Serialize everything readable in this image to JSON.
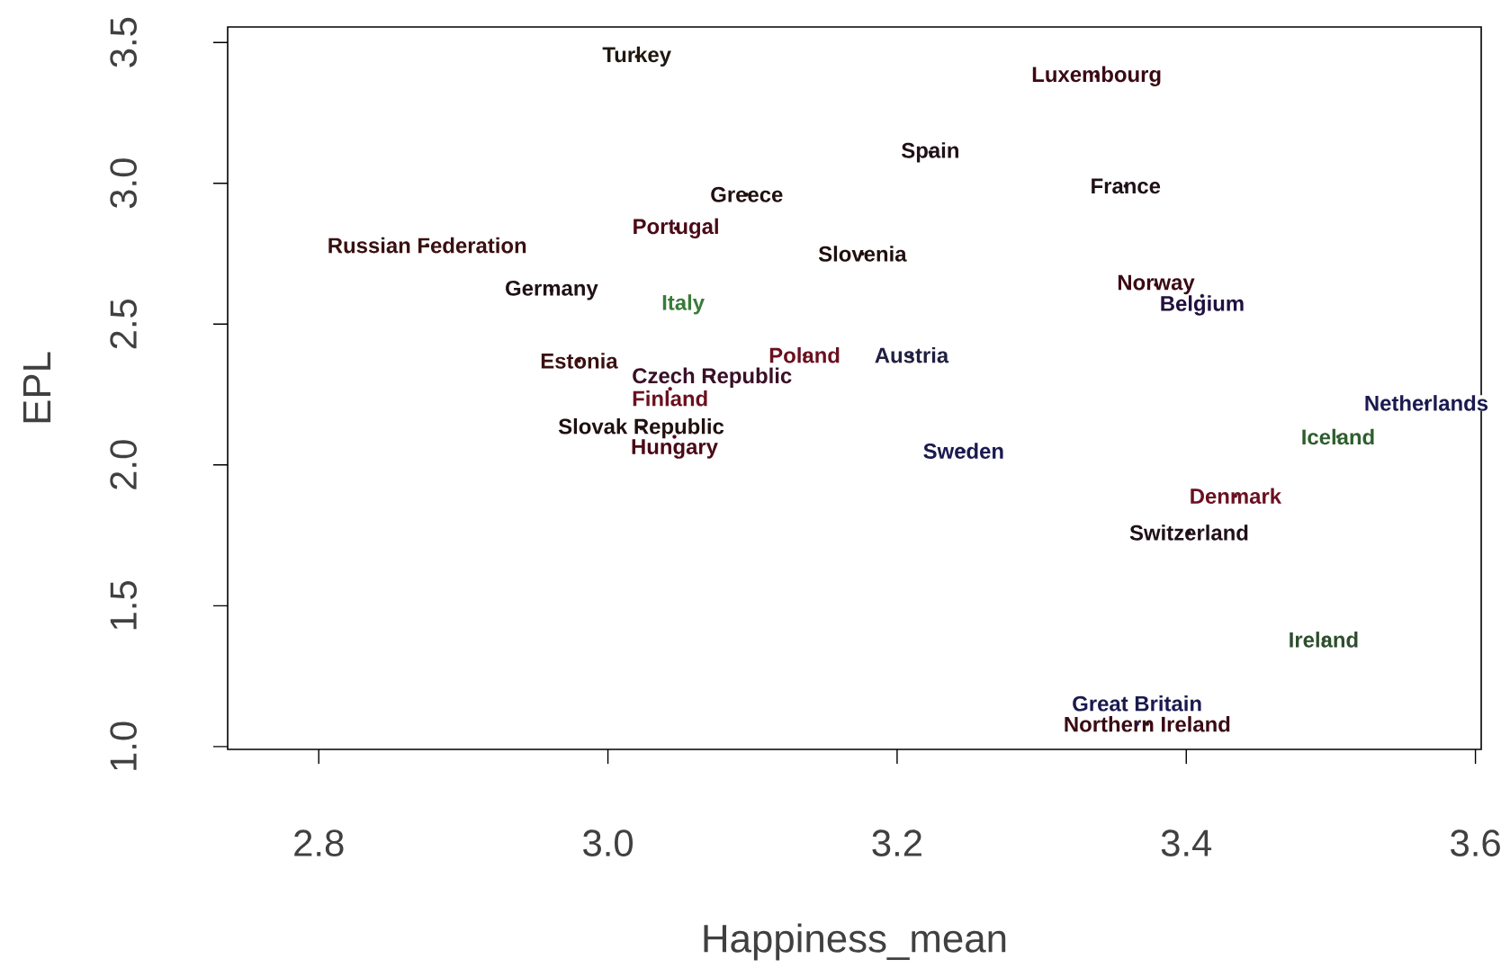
{
  "chart_data": {
    "type": "scatter",
    "xlabel": "Happiness_mean",
    "ylabel": "EPL",
    "x": [
      3.02,
      3.338,
      3.223,
      3.358,
      3.096,
      3.047,
      2.875,
      3.176,
      2.961,
      3.379,
      3.411,
      3.052,
      3.136,
      3.21,
      2.98,
      3.072,
      3.043,
      3.566,
      3.505,
      3.023,
      3.046,
      3.246,
      3.434,
      3.402,
      3.495,
      3.373,
      3.366
    ],
    "values": [
      3.45,
      3.38,
      3.11,
      2.99,
      2.96,
      2.84,
      2.78,
      2.75,
      2.62,
      2.64,
      2.6,
      2.57,
      2.39,
      2.39,
      2.37,
      2.31,
      2.27,
      2.22,
      2.1,
      2.13,
      2.1,
      2.05,
      1.89,
      1.76,
      1.38,
      1.08,
      1.08
    ],
    "value_labels": [
      "Turkey",
      "Luxembourg",
      "Spain",
      "France",
      "Greece",
      "Portugal",
      "Russian Federation",
      "Slovenia",
      "Germany",
      "Norway",
      "Belgium",
      "Italy",
      "Poland",
      "Austria",
      "Estonia",
      "Czech Republic",
      "Finland",
      "Netherlands",
      "Iceland",
      "Slovak Republic",
      "Hungary",
      "Sweden",
      "Denmark",
      "Switzerland",
      "Ireland",
      "Northern Ireland",
      "Great Britain"
    ],
    "colors": [
      "#201810",
      "#3a0a14",
      "#201018",
      "#201018",
      "#201010",
      "#4a0a18",
      "#3a1010",
      "#201010",
      "#201018",
      "#3a0a14",
      "#201040",
      "#3a7a3a",
      "#6a1020",
      "#202040",
      "#3a1010",
      "#3a1028",
      "#6a1020",
      "#1a1a50",
      "#2e5e2e",
      "#201010",
      "#4a0a18",
      "#1a1a50",
      "#6a1020",
      "#201018",
      "#2e4e2e",
      "#3a0a14",
      "#1a1a50"
    ],
    "marker": "none",
    "xlim": [
      2.737,
      3.604
    ],
    "ylim": [
      0.99,
      3.555
    ],
    "xticks": [
      2.8,
      {
        "value": 3.0,
        "label": "3.0"
      },
      3.2,
      3.4,
      3.6
    ],
    "yticks": [
      {
        "value": 1.0,
        "label": "1.0"
      },
      1.5,
      {
        "value": 2.0,
        "label": "2.0"
      },
      2.5,
      {
        "value": 3.0,
        "label": "3.0"
      },
      3.5
    ]
  }
}
